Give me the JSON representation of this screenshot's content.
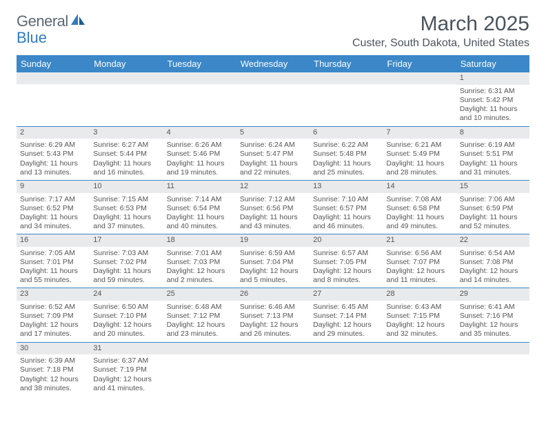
{
  "logo": {
    "text1": "General",
    "text2": "Blue"
  },
  "title": "March 2025",
  "location": "Custer, South Dakota, United States",
  "colors": {
    "header_bg": "#3b87c8",
    "header_text": "#ffffff",
    "daynum_bg": "#e9eaec",
    "cell_border": "#3b87c8",
    "body_text": "#555555",
    "title_text": "#4a535b"
  },
  "day_headers": [
    "Sunday",
    "Monday",
    "Tuesday",
    "Wednesday",
    "Thursday",
    "Friday",
    "Saturday"
  ],
  "weeks": [
    [
      {
        "day": "",
        "lines": []
      },
      {
        "day": "",
        "lines": []
      },
      {
        "day": "",
        "lines": []
      },
      {
        "day": "",
        "lines": []
      },
      {
        "day": "",
        "lines": []
      },
      {
        "day": "",
        "lines": []
      },
      {
        "day": "1",
        "lines": [
          "Sunrise: 6:31 AM",
          "Sunset: 5:42 PM",
          "Daylight: 11 hours",
          "and 10 minutes."
        ]
      }
    ],
    [
      {
        "day": "2",
        "lines": [
          "Sunrise: 6:29 AM",
          "Sunset: 5:43 PM",
          "Daylight: 11 hours",
          "and 13 minutes."
        ]
      },
      {
        "day": "3",
        "lines": [
          "Sunrise: 6:27 AM",
          "Sunset: 5:44 PM",
          "Daylight: 11 hours",
          "and 16 minutes."
        ]
      },
      {
        "day": "4",
        "lines": [
          "Sunrise: 6:26 AM",
          "Sunset: 5:46 PM",
          "Daylight: 11 hours",
          "and 19 minutes."
        ]
      },
      {
        "day": "5",
        "lines": [
          "Sunrise: 6:24 AM",
          "Sunset: 5:47 PM",
          "Daylight: 11 hours",
          "and 22 minutes."
        ]
      },
      {
        "day": "6",
        "lines": [
          "Sunrise: 6:22 AM",
          "Sunset: 5:48 PM",
          "Daylight: 11 hours",
          "and 25 minutes."
        ]
      },
      {
        "day": "7",
        "lines": [
          "Sunrise: 6:21 AM",
          "Sunset: 5:49 PM",
          "Daylight: 11 hours",
          "and 28 minutes."
        ]
      },
      {
        "day": "8",
        "lines": [
          "Sunrise: 6:19 AM",
          "Sunset: 5:51 PM",
          "Daylight: 11 hours",
          "and 31 minutes."
        ]
      }
    ],
    [
      {
        "day": "9",
        "lines": [
          "Sunrise: 7:17 AM",
          "Sunset: 6:52 PM",
          "Daylight: 11 hours",
          "and 34 minutes."
        ]
      },
      {
        "day": "10",
        "lines": [
          "Sunrise: 7:15 AM",
          "Sunset: 6:53 PM",
          "Daylight: 11 hours",
          "and 37 minutes."
        ]
      },
      {
        "day": "11",
        "lines": [
          "Sunrise: 7:14 AM",
          "Sunset: 6:54 PM",
          "Daylight: 11 hours",
          "and 40 minutes."
        ]
      },
      {
        "day": "12",
        "lines": [
          "Sunrise: 7:12 AM",
          "Sunset: 6:56 PM",
          "Daylight: 11 hours",
          "and 43 minutes."
        ]
      },
      {
        "day": "13",
        "lines": [
          "Sunrise: 7:10 AM",
          "Sunset: 6:57 PM",
          "Daylight: 11 hours",
          "and 46 minutes."
        ]
      },
      {
        "day": "14",
        "lines": [
          "Sunrise: 7:08 AM",
          "Sunset: 6:58 PM",
          "Daylight: 11 hours",
          "and 49 minutes."
        ]
      },
      {
        "day": "15",
        "lines": [
          "Sunrise: 7:06 AM",
          "Sunset: 6:59 PM",
          "Daylight: 11 hours",
          "and 52 minutes."
        ]
      }
    ],
    [
      {
        "day": "16",
        "lines": [
          "Sunrise: 7:05 AM",
          "Sunset: 7:01 PM",
          "Daylight: 11 hours",
          "and 55 minutes."
        ]
      },
      {
        "day": "17",
        "lines": [
          "Sunrise: 7:03 AM",
          "Sunset: 7:02 PM",
          "Daylight: 11 hours",
          "and 59 minutes."
        ]
      },
      {
        "day": "18",
        "lines": [
          "Sunrise: 7:01 AM",
          "Sunset: 7:03 PM",
          "Daylight: 12 hours",
          "and 2 minutes."
        ]
      },
      {
        "day": "19",
        "lines": [
          "Sunrise: 6:59 AM",
          "Sunset: 7:04 PM",
          "Daylight: 12 hours",
          "and 5 minutes."
        ]
      },
      {
        "day": "20",
        "lines": [
          "Sunrise: 6:57 AM",
          "Sunset: 7:05 PM",
          "Daylight: 12 hours",
          "and 8 minutes."
        ]
      },
      {
        "day": "21",
        "lines": [
          "Sunrise: 6:56 AM",
          "Sunset: 7:07 PM",
          "Daylight: 12 hours",
          "and 11 minutes."
        ]
      },
      {
        "day": "22",
        "lines": [
          "Sunrise: 6:54 AM",
          "Sunset: 7:08 PM",
          "Daylight: 12 hours",
          "and 14 minutes."
        ]
      }
    ],
    [
      {
        "day": "23",
        "lines": [
          "Sunrise: 6:52 AM",
          "Sunset: 7:09 PM",
          "Daylight: 12 hours",
          "and 17 minutes."
        ]
      },
      {
        "day": "24",
        "lines": [
          "Sunrise: 6:50 AM",
          "Sunset: 7:10 PM",
          "Daylight: 12 hours",
          "and 20 minutes."
        ]
      },
      {
        "day": "25",
        "lines": [
          "Sunrise: 6:48 AM",
          "Sunset: 7:12 PM",
          "Daylight: 12 hours",
          "and 23 minutes."
        ]
      },
      {
        "day": "26",
        "lines": [
          "Sunrise: 6:46 AM",
          "Sunset: 7:13 PM",
          "Daylight: 12 hours",
          "and 26 minutes."
        ]
      },
      {
        "day": "27",
        "lines": [
          "Sunrise: 6:45 AM",
          "Sunset: 7:14 PM",
          "Daylight: 12 hours",
          "and 29 minutes."
        ]
      },
      {
        "day": "28",
        "lines": [
          "Sunrise: 6:43 AM",
          "Sunset: 7:15 PM",
          "Daylight: 12 hours",
          "and 32 minutes."
        ]
      },
      {
        "day": "29",
        "lines": [
          "Sunrise: 6:41 AM",
          "Sunset: 7:16 PM",
          "Daylight: 12 hours",
          "and 35 minutes."
        ]
      }
    ],
    [
      {
        "day": "30",
        "lines": [
          "Sunrise: 6:39 AM",
          "Sunset: 7:18 PM",
          "Daylight: 12 hours",
          "and 38 minutes."
        ]
      },
      {
        "day": "31",
        "lines": [
          "Sunrise: 6:37 AM",
          "Sunset: 7:19 PM",
          "Daylight: 12 hours",
          "and 41 minutes."
        ]
      },
      {
        "day": "",
        "lines": []
      },
      {
        "day": "",
        "lines": []
      },
      {
        "day": "",
        "lines": []
      },
      {
        "day": "",
        "lines": []
      },
      {
        "day": "",
        "lines": []
      }
    ]
  ]
}
